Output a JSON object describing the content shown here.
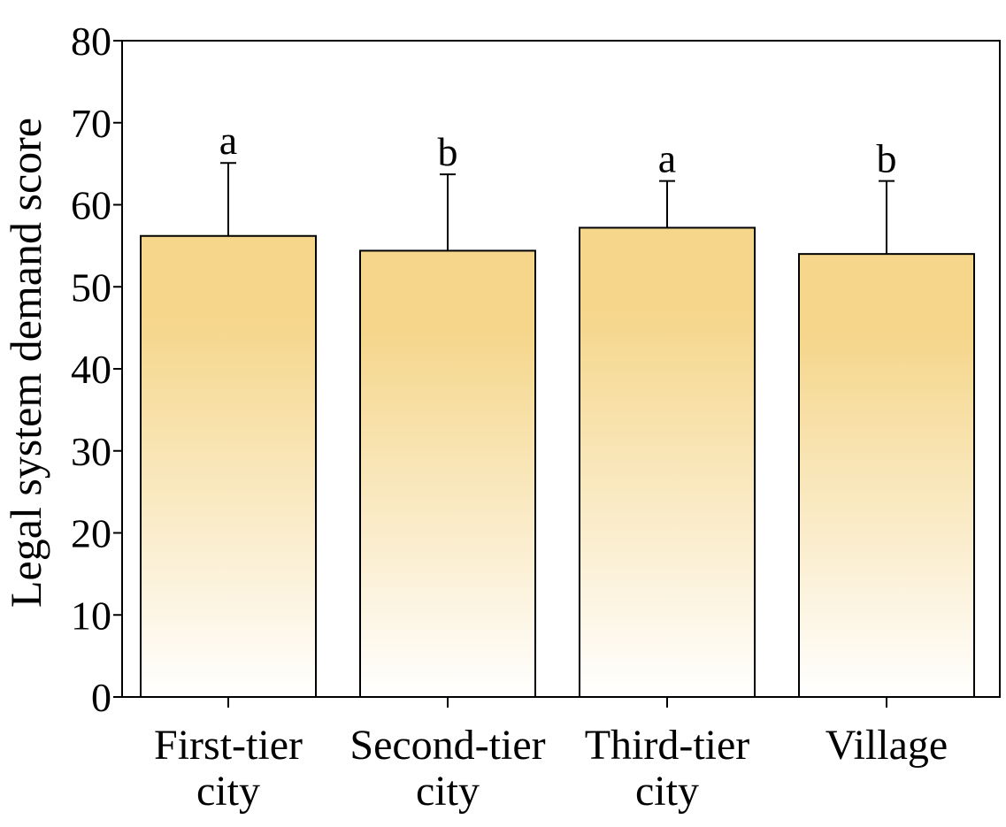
{
  "chart_data": {
    "type": "bar",
    "title": "",
    "xlabel": "",
    "ylabel": "Legal system demand score",
    "categories": [
      [
        "First-tier",
        "city"
      ],
      [
        "Second-tier",
        "city"
      ],
      [
        "Third-tier",
        "city"
      ],
      [
        "Village"
      ]
    ],
    "values": [
      56.2,
      54.4,
      57.2,
      54.0
    ],
    "error": [
      8.9,
      9.3,
      5.7,
      8.9
    ],
    "significance": [
      "a",
      "b",
      "a",
      "b"
    ],
    "ylim": [
      0,
      80
    ],
    "yticks": [
      0,
      10,
      20,
      30,
      40,
      50,
      60,
      70,
      80
    ],
    "grid": false,
    "legend": "none",
    "bar_gradient": {
      "top": "#f5d68b",
      "bottom": "#ffffff"
    },
    "bar_stroke": "#000000"
  }
}
